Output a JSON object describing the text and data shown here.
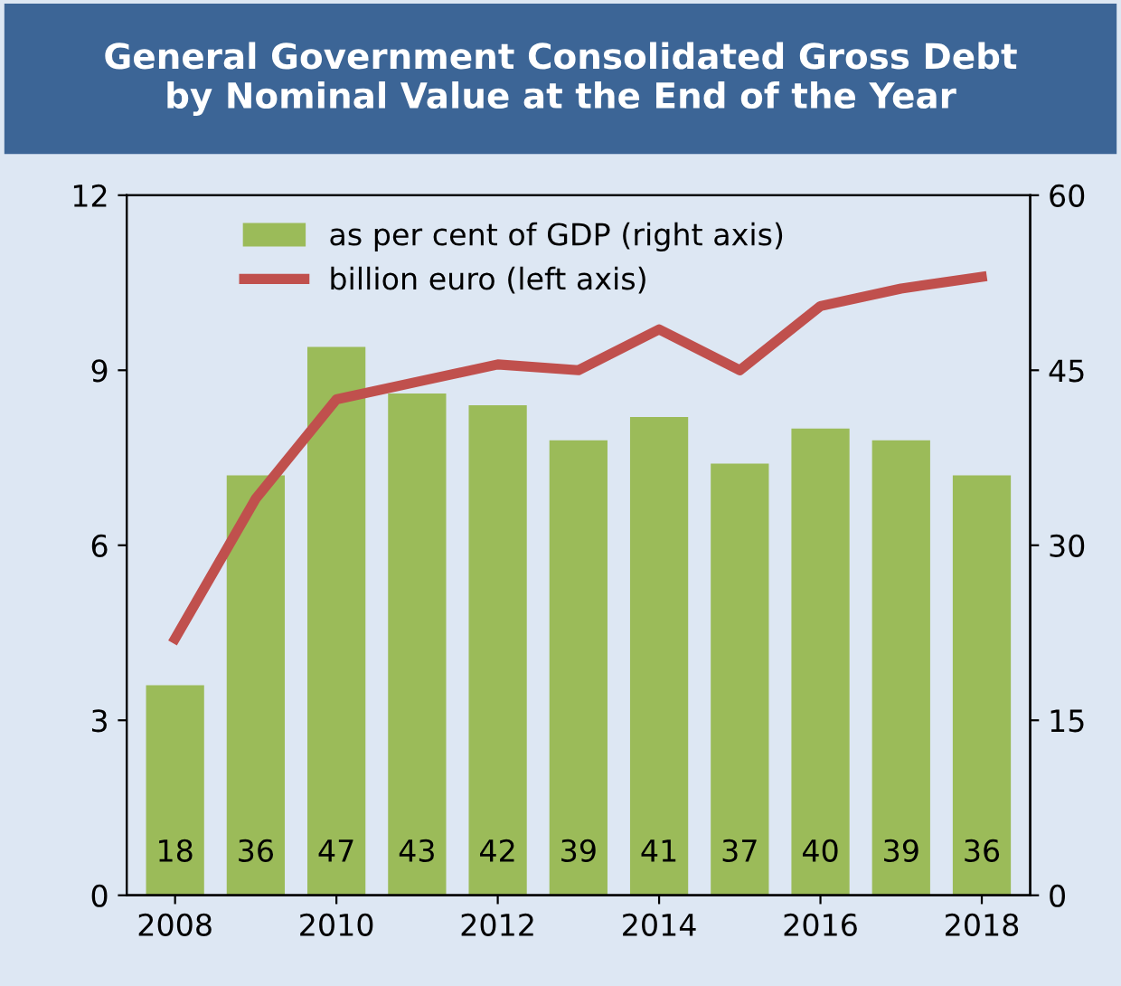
{
  "chart_data": {
    "type": "bar",
    "title": "General Government Consolidated Gross Debt\nby Nominal Value at the End of the Year",
    "x": [
      2008,
      2009,
      2010,
      2011,
      2012,
      2013,
      2014,
      2015,
      2016,
      2017,
      2018
    ],
    "series": [
      {
        "name": "as per cent of GDP (right axis)",
        "axis": "y2",
        "color": "#9bbb59",
        "values": [
          18,
          36,
          47,
          43,
          42,
          39,
          41,
          37,
          40,
          39,
          36
        ],
        "value_labels": [
          "18",
          "36",
          "47",
          "43",
          "42",
          "39",
          "41",
          "37",
          "40",
          "39",
          "36"
        ]
      },
      {
        "name": "billion euro (left axis)",
        "type": "line",
        "axis": "y",
        "color": "#c0504d",
        "values": [
          4.4,
          6.8,
          8.5,
          8.8,
          9.1,
          9.0,
          9.7,
          9.0,
          10.1,
          10.4,
          10.6
        ]
      }
    ],
    "xlim": [
      2007.4,
      2018.6
    ],
    "xticks": [
      2008,
      2010,
      2012,
      2014,
      2016,
      2018
    ],
    "ylim": [
      0,
      12
    ],
    "yticks": [
      0,
      3,
      6,
      9,
      12
    ],
    "y2lim": [
      0,
      60
    ],
    "y2ticks": [
      0,
      15,
      30,
      45,
      60
    ],
    "grid": false,
    "legend": "top left",
    "marker": "none",
    "line_style": "solid"
  }
}
